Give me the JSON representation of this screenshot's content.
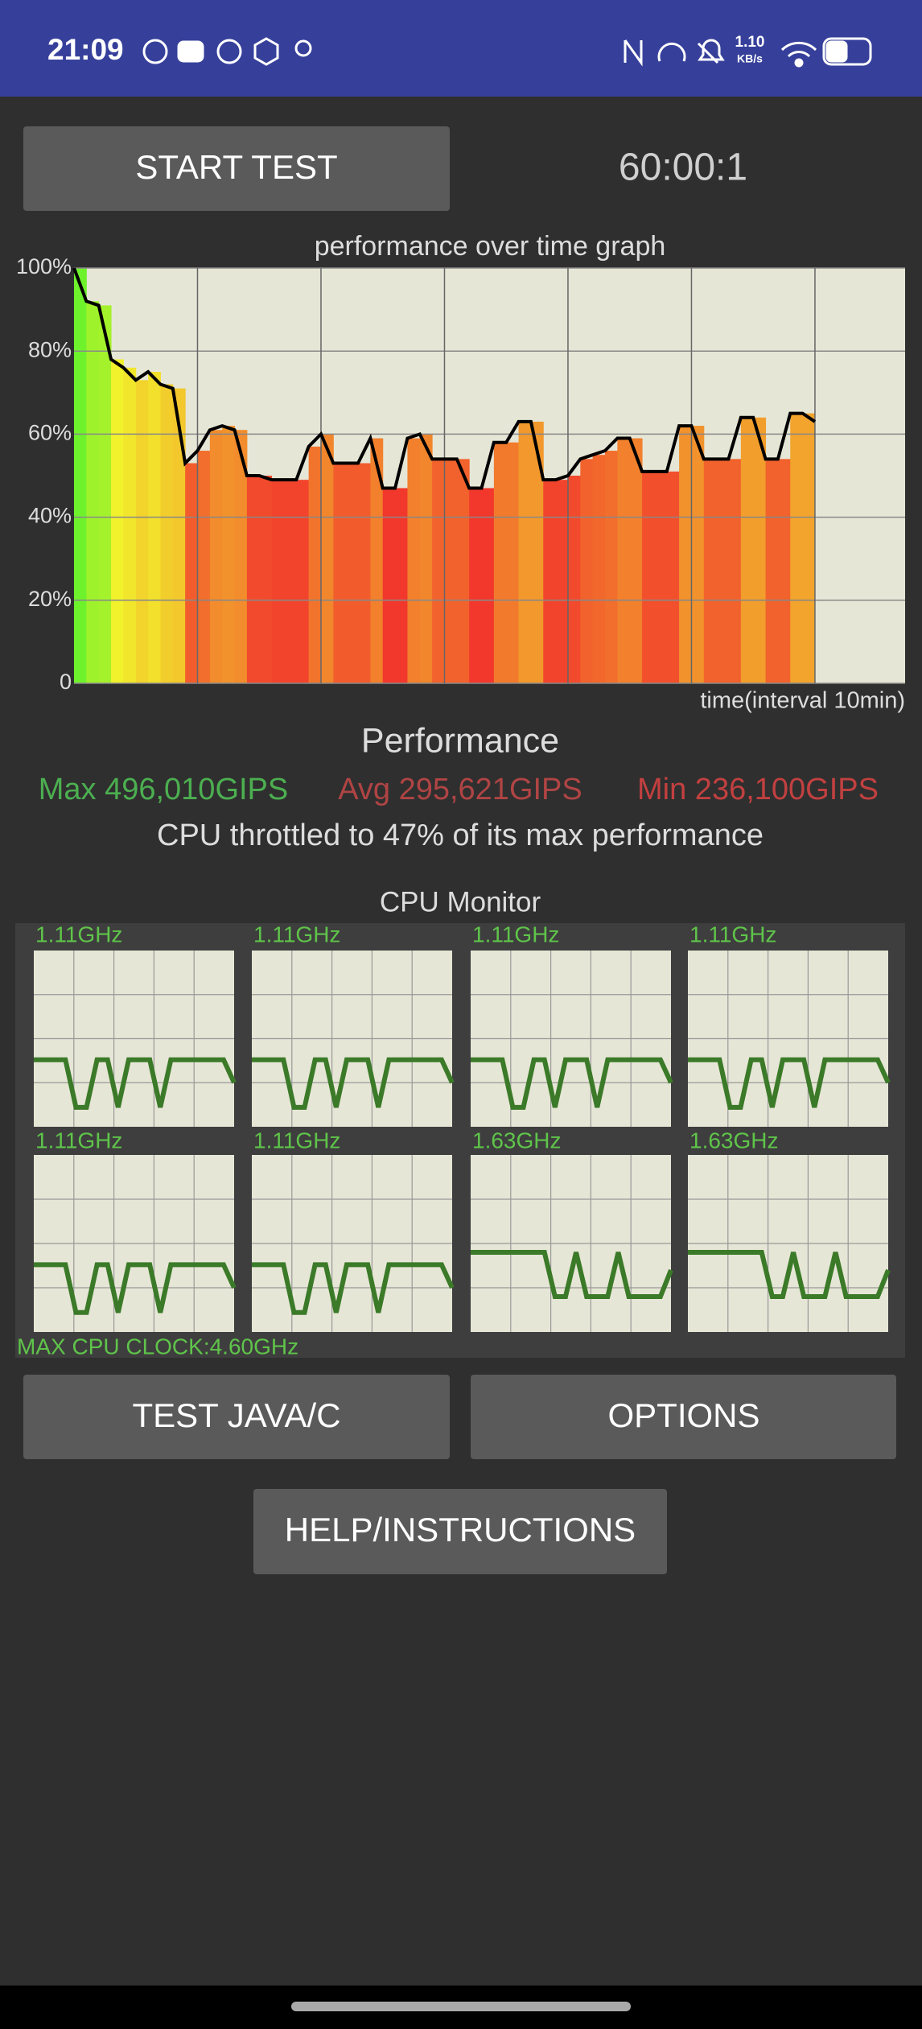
{
  "status_bar": {
    "time": "21:09",
    "net_speed": "1.10",
    "net_unit": "KB/s"
  },
  "controls": {
    "start_button": "START TEST",
    "timer": "60:00:1"
  },
  "performance_graph": {
    "type": "line",
    "title": "performance over time graph",
    "x_label": "time(interval 10min)",
    "xlim": [
      0,
      67.3
    ],
    "xticks": [
      10,
      20,
      30,
      40,
      50,
      60
    ],
    "ylim": [
      0,
      100
    ],
    "yticks": [
      0,
      {
        "value": 20,
        "label": "20%"
      },
      {
        "value": 40,
        "label": "40%"
      },
      {
        "value": 60,
        "label": "60%"
      },
      {
        "value": 80,
        "label": "80%"
      },
      {
        "value": 100,
        "label": "100%"
      }
    ],
    "x": [
      0,
      1,
      2,
      3,
      4,
      5,
      6,
      7,
      8,
      9,
      10,
      11,
      12,
      13,
      14,
      15,
      16,
      17,
      18,
      19,
      20,
      21,
      22,
      23,
      24,
      25,
      26,
      27,
      28,
      29,
      30,
      31,
      32,
      33,
      34,
      35,
      36,
      37,
      38,
      39,
      40,
      41,
      42,
      43,
      44,
      45,
      46,
      47,
      48,
      49,
      50,
      51,
      52,
      53,
      54,
      55,
      56,
      57,
      58,
      59,
      60
    ],
    "values": [
      100,
      92,
      91,
      78,
      76,
      73,
      75,
      72,
      71,
      53,
      56,
      61,
      62,
      61,
      50,
      50,
      49,
      49,
      49,
      57,
      60,
      53,
      53,
      53,
      59,
      47,
      47,
      59,
      60,
      54,
      54,
      54,
      47,
      47,
      58,
      58,
      63,
      63,
      49,
      49,
      50,
      54,
      55,
      56,
      59,
      59,
      51,
      51,
      51,
      62,
      62,
      54,
      54,
      54,
      64,
      64,
      54,
      54,
      65,
      65,
      63
    ]
  },
  "performance": {
    "title": "Performance",
    "max": "Max 496,010GIPS",
    "avg": "Avg 295,621GIPS",
    "min": "Min 236,100GIPS",
    "summary": "CPU throttled to 47% of its max performance"
  },
  "cpu_monitor": {
    "title": "CPU Monitor",
    "ylim": [
      0,
      100
    ],
    "cores": [
      {
        "label": "1.11GHz",
        "values": [
          38,
          38,
          38,
          38,
          11,
          11,
          38,
          38,
          11,
          38,
          38,
          38,
          11,
          38,
          38,
          38,
          38,
          38,
          38,
          25
        ]
      },
      {
        "label": "1.11GHz",
        "values": [
          38,
          38,
          38,
          38,
          11,
          11,
          38,
          38,
          11,
          38,
          38,
          38,
          11,
          38,
          38,
          38,
          38,
          38,
          38,
          25
        ]
      },
      {
        "label": "1.11GHz",
        "values": [
          38,
          38,
          38,
          38,
          11,
          11,
          38,
          38,
          11,
          38,
          38,
          38,
          11,
          38,
          38,
          38,
          38,
          38,
          38,
          25
        ]
      },
      {
        "label": "1.11GHz",
        "values": [
          38,
          38,
          38,
          38,
          11,
          11,
          38,
          38,
          11,
          38,
          38,
          38,
          11,
          38,
          38,
          38,
          38,
          38,
          38,
          25
        ]
      },
      {
        "label": "1.11GHz",
        "values": [
          38,
          38,
          38,
          38,
          11,
          11,
          38,
          38,
          11,
          38,
          38,
          38,
          11,
          38,
          38,
          38,
          38,
          38,
          38,
          25
        ]
      },
      {
        "label": "1.11GHz",
        "values": [
          38,
          38,
          38,
          38,
          11,
          11,
          38,
          38,
          11,
          38,
          38,
          38,
          11,
          38,
          38,
          38,
          38,
          38,
          38,
          25
        ]
      },
      {
        "label": "1.63GHz",
        "values": [
          45,
          45,
          45,
          45,
          45,
          45,
          45,
          45,
          20,
          20,
          45,
          20,
          20,
          20,
          45,
          20,
          20,
          20,
          20,
          35
        ]
      },
      {
        "label": "1.63GHz",
        "values": [
          45,
          45,
          45,
          45,
          45,
          45,
          45,
          45,
          20,
          20,
          45,
          20,
          20,
          20,
          45,
          20,
          20,
          20,
          20,
          35
        ]
      }
    ],
    "max_clock": "MAX CPU CLOCK:4.60GHz"
  },
  "buttons": {
    "test_java": "TEST JAVA/C",
    "options": "OPTIONS",
    "help": "HELP/INSTRUCTIONS"
  }
}
